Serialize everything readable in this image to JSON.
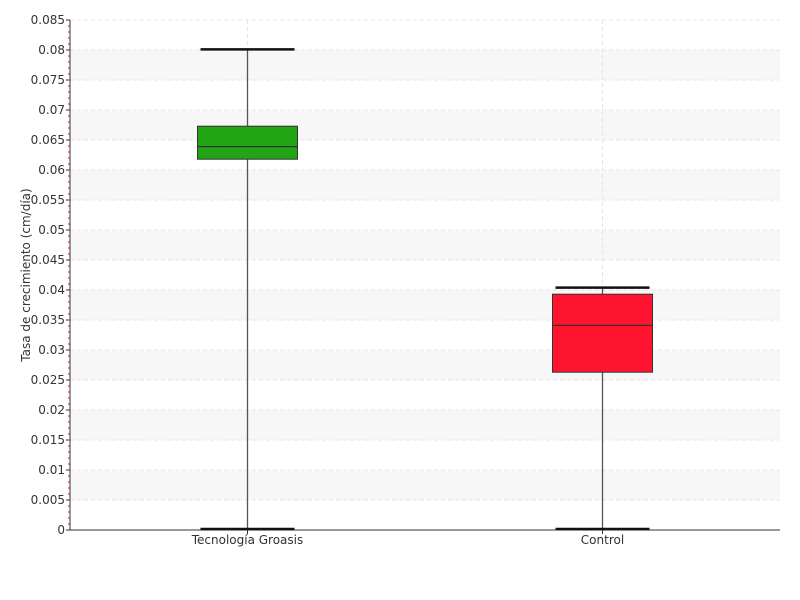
{
  "chart_data": {
    "type": "box",
    "title": "",
    "xlabel": "",
    "ylabel": "Tasa de crecimiento (cm/día)",
    "ylim": [
      0,
      0.085
    ],
    "ytick_step": 0.005,
    "yticks": [
      "0",
      "0.005",
      "0.01",
      "0.015",
      "0.02",
      "0.025",
      "0.03",
      "0.035",
      "0.04",
      "0.045",
      "0.05",
      "0.055",
      "0.06",
      "0.065",
      "0.07",
      "0.075",
      "0.08",
      "0.085"
    ],
    "grid": true,
    "categories": [
      "Tecnología Groasis",
      "Control"
    ],
    "boxes": [
      {
        "category": "Tecnología Groasis",
        "min": 0.0,
        "q1": 0.0618,
        "median": 0.0639,
        "q3": 0.0673,
        "max": 0.0801,
        "color": "#22a514"
      },
      {
        "category": "Control",
        "min": 0.0,
        "q1": 0.0263,
        "median": 0.0341,
        "q3": 0.0393,
        "max": 0.0404,
        "color": "#ff1430"
      }
    ]
  }
}
